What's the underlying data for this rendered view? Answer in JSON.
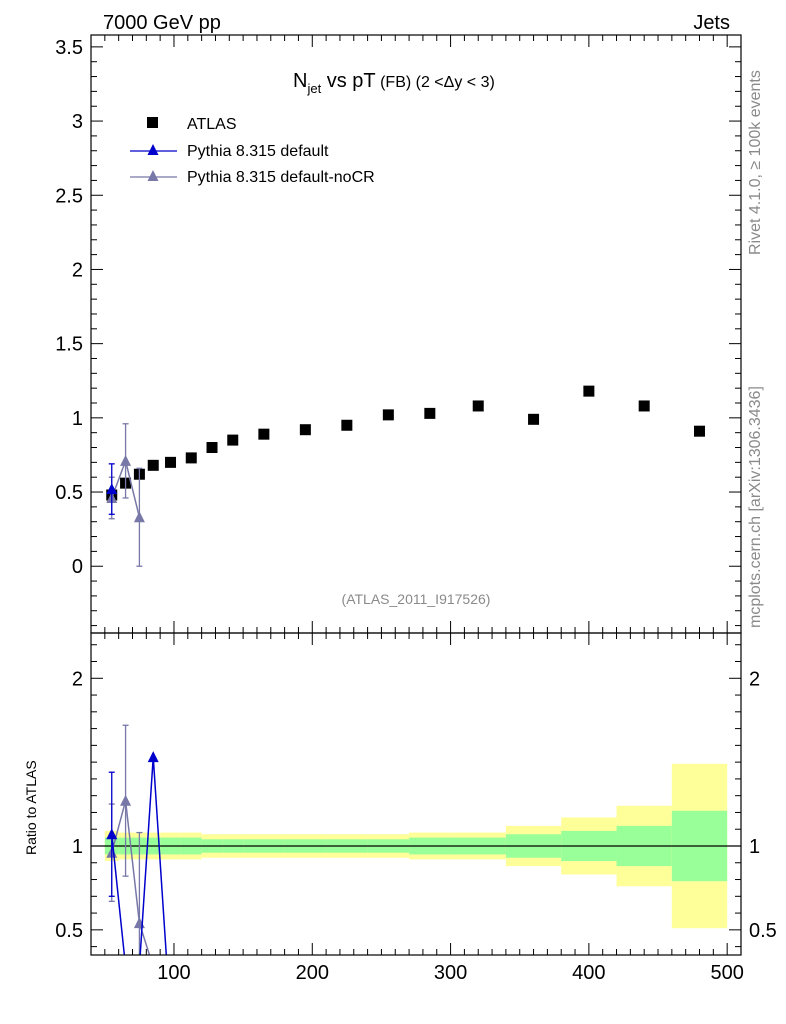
{
  "header": {
    "energy_label": "7000 GeV pp",
    "category_label": "Jets"
  },
  "side_labels": {
    "rivet": "Rivet 4.1.0, ≥ 100k events",
    "source": "mcplots.cern.ch [arXiv:1306.3436]"
  },
  "title": {
    "main_n": "N",
    "main_sub": "jet",
    "main_rest": " vs pT",
    "qualifier": " (FB) (2 <Δy < 3)"
  },
  "analysis_id": "(ATLAS_2011_I917526)",
  "ratio_ylabel": "Ratio to ATLAS",
  "colors": {
    "data": "#000000",
    "default": "#0000cc",
    "nocr": "#7878a8",
    "band_inner": "#99ff99",
    "band_outer": "#ffff99"
  },
  "chart_data": [
    {
      "type": "scatter",
      "name": "main",
      "xlim": [
        40,
        510
      ],
      "ylim": [
        -0.45,
        3.58
      ],
      "yticks": [
        0,
        0.5,
        1,
        1.5,
        2,
        2.5,
        3,
        3.5
      ],
      "ytick_labels": [
        "0",
        "0.5",
        "1",
        "1.5",
        "2",
        "2.5",
        "3",
        "3.5"
      ],
      "legend": [
        "ATLAS",
        "Pythia 8.315 default",
        "Pythia 8.315 default-noCR"
      ],
      "series": [
        {
          "name": "ATLAS",
          "marker": "square",
          "x": [
            55,
            65,
            75,
            85,
            97.5,
            112.5,
            127.5,
            142.5,
            165,
            195,
            225,
            255,
            285,
            320,
            360,
            400,
            440,
            480
          ],
          "y": [
            0.48,
            0.56,
            0.62,
            0.68,
            0.7,
            0.73,
            0.8,
            0.85,
            0.89,
            0.92,
            0.95,
            1.02,
            1.03,
            1.08,
            0.99,
            1.18,
            1.08,
            0.91
          ]
        },
        {
          "name": "Pythia 8.315 default",
          "marker": "triangle",
          "x": [
            55
          ],
          "y": [
            0.52
          ],
          "yerr": [
            0.17
          ]
        },
        {
          "name": "Pythia 8.315 default-noCR",
          "marker": "triangle",
          "x": [
            55,
            65,
            75
          ],
          "y": [
            0.46,
            0.71,
            0.33
          ],
          "yerr": [
            0.14,
            0.25,
            0.33
          ]
        }
      ]
    },
    {
      "type": "line",
      "name": "ratio",
      "xlabel": "",
      "ylabel": "Ratio to ATLAS",
      "xlim": [
        40,
        510
      ],
      "ylim": [
        0.35,
        2.27
      ],
      "xticks": [
        100,
        200,
        300,
        400,
        500
      ],
      "xtick_labels": [
        "100",
        "200",
        "300",
        "400",
        "500"
      ],
      "yticks": [
        0.5,
        1,
        2
      ],
      "ytick_labels": [
        "0.5",
        "1",
        "2"
      ],
      "bands": {
        "edges": [
          50,
          60,
          70,
          80,
          90,
          105,
          120,
          135,
          150,
          180,
          210,
          240,
          270,
          300,
          340,
          380,
          420,
          460,
          500
        ],
        "inner_low": [
          0.95,
          0.95,
          0.95,
          0.95,
          0.95,
          0.95,
          0.96,
          0.96,
          0.96,
          0.96,
          0.96,
          0.96,
          0.95,
          0.95,
          0.93,
          0.91,
          0.88,
          0.79
        ],
        "inner_high": [
          1.05,
          1.05,
          1.05,
          1.05,
          1.05,
          1.05,
          1.04,
          1.04,
          1.04,
          1.04,
          1.04,
          1.04,
          1.05,
          1.05,
          1.07,
          1.09,
          1.12,
          1.21
        ],
        "outer_low": [
          0.91,
          0.92,
          0.92,
          0.92,
          0.92,
          0.92,
          0.93,
          0.93,
          0.93,
          0.93,
          0.93,
          0.93,
          0.92,
          0.92,
          0.88,
          0.83,
          0.76,
          0.51
        ],
        "outer_high": [
          1.09,
          1.08,
          1.08,
          1.08,
          1.08,
          1.08,
          1.07,
          1.07,
          1.07,
          1.07,
          1.07,
          1.07,
          1.08,
          1.08,
          1.12,
          1.17,
          1.24,
          1.49
        ]
      },
      "series": [
        {
          "name": "Pythia 8.315 default",
          "x": [
            55,
            65,
            75,
            85,
            95
          ],
          "y": [
            1.07,
            0.28,
            0.28,
            1.53,
            0.28
          ],
          "marker_points": [
            0,
            3
          ],
          "yerr": [
            0.37,
            0,
            0,
            0,
            0
          ]
        },
        {
          "name": "Pythia 8.315 default-noCR",
          "x": [
            55,
            65,
            75,
            85
          ],
          "y": [
            0.96,
            1.27,
            0.54,
            0.28
          ],
          "marker_points": [
            0,
            1,
            2
          ],
          "yerr": [
            0.29,
            0.45,
            0.54,
            0
          ]
        }
      ]
    }
  ]
}
